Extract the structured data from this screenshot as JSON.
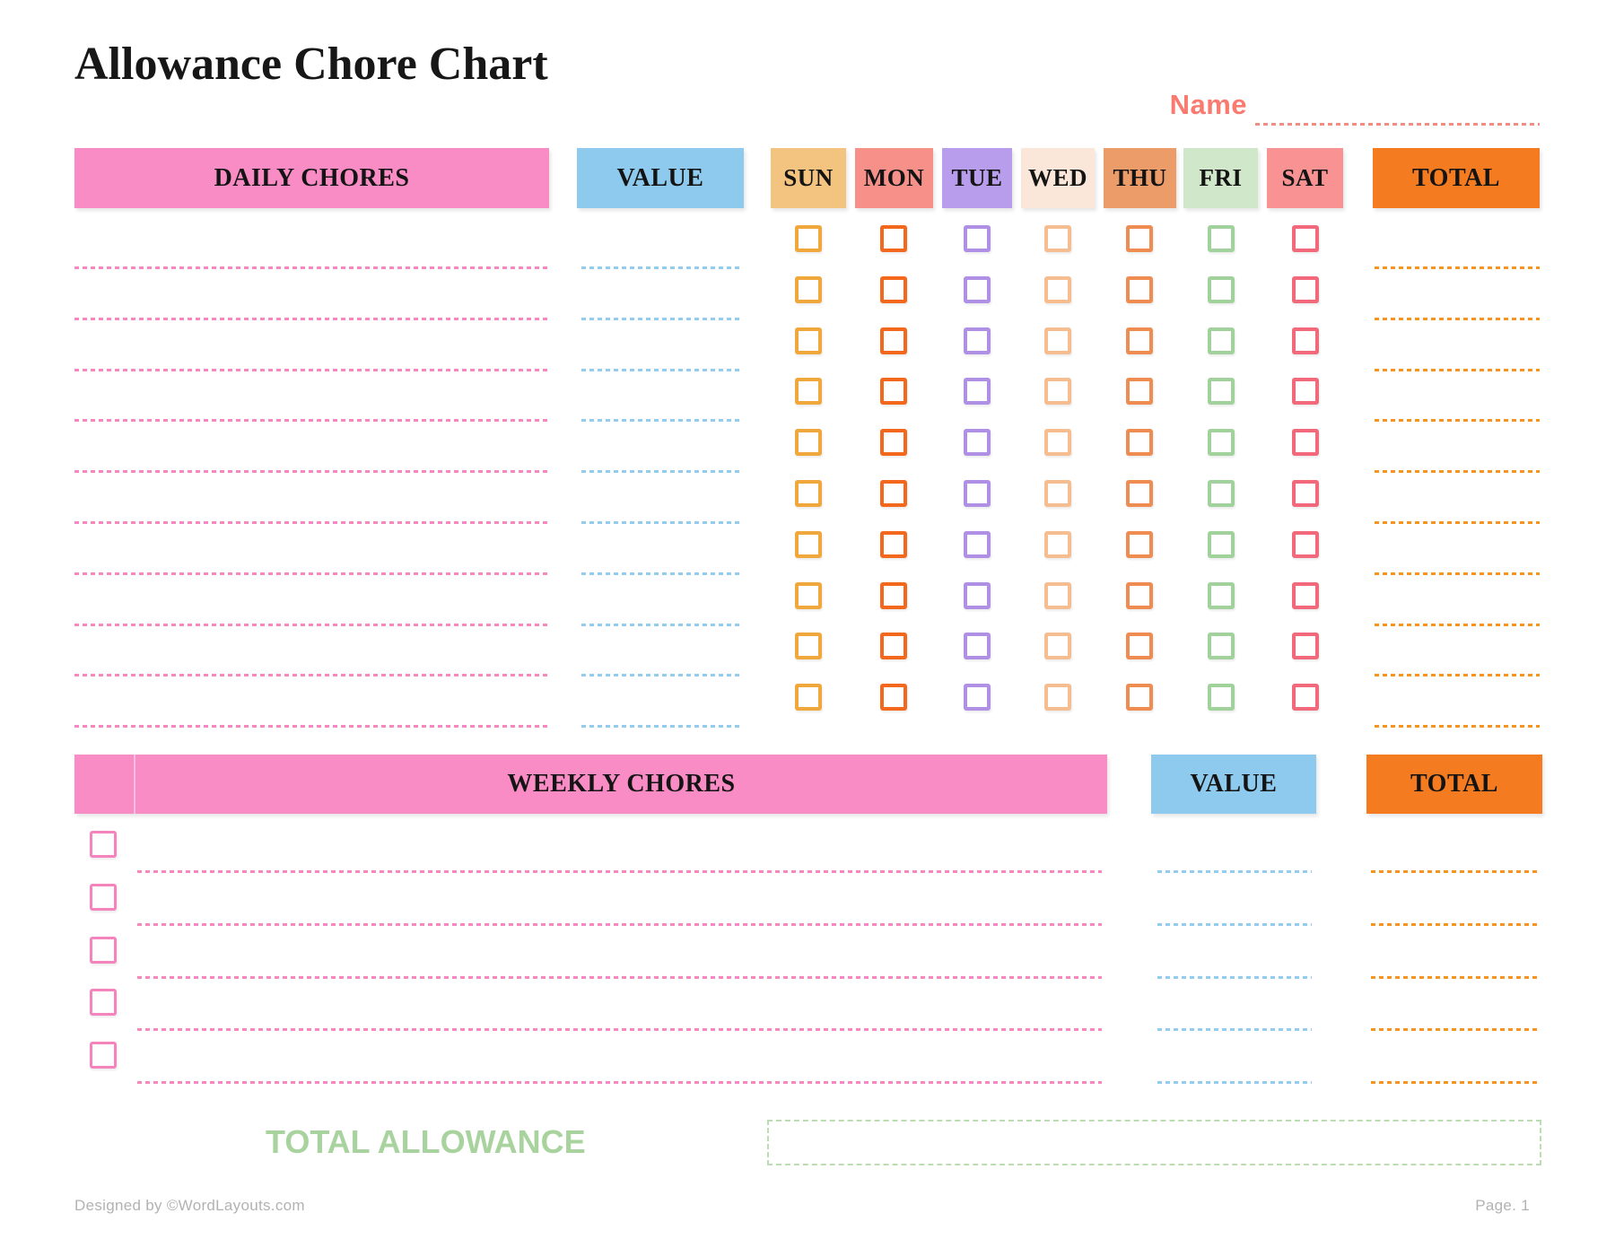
{
  "page": {
    "title": "Allowance Chore Chart",
    "name_label": "Name",
    "total_allowance_label": "TOTAL ALLOWANCE",
    "footer_left": "Designed by ©WordLayouts.com",
    "footer_right": "Page. 1"
  },
  "daily": {
    "chores_header": "DAILY CHORES",
    "value_header": "VALUE",
    "total_header": "TOTAL",
    "rows": 10,
    "days": [
      {
        "label": "SUN",
        "header_bg": "#F3C380",
        "checkbox_color": "#F0A73C"
      },
      {
        "label": "MON",
        "header_bg": "#F8908A",
        "checkbox_color": "#F3681C"
      },
      {
        "label": "TUE",
        "header_bg": "#B89DED",
        "checkbox_color": "#AF90E4"
      },
      {
        "label": "WED",
        "header_bg": "#FBE7D9",
        "checkbox_color": "#F6BE90"
      },
      {
        "label": "THU",
        "header_bg": "#EC9C68",
        "checkbox_color": "#EE8C52"
      },
      {
        "label": "FRI",
        "header_bg": "#D0E7CA",
        "checkbox_color": "#A2D29B"
      },
      {
        "label": "SAT",
        "header_bg": "#F99393",
        "checkbox_color": "#F2697B"
      }
    ]
  },
  "weekly": {
    "chores_header": "WEEKLY CHORES",
    "value_header": "VALUE",
    "total_header": "TOTAL",
    "rows": 5,
    "checkbox_color": "#F584BE"
  },
  "colors": {
    "header_pink": "#F98CC4",
    "header_blue": "#8ECAED",
    "header_orange": "#F57B20",
    "chore_line_pink": "#F787BF",
    "value_line_blue": "#92CCEE",
    "total_line_orange": "#F6941F",
    "name_text": "#F97B70",
    "name_line": "#F28B80",
    "allowance_text": "#A9D39E",
    "allowance_box_border": "#BCDDB1",
    "footer_gray": "#B2B2B2",
    "title_text": "#171717",
    "header_label": "#141414"
  }
}
